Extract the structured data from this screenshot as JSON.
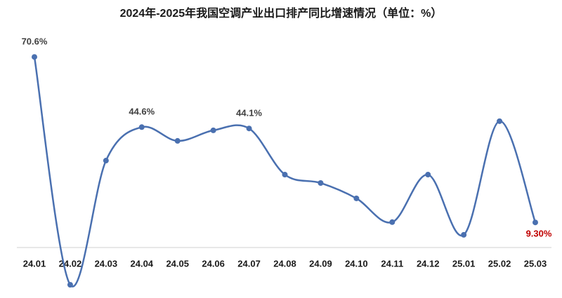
{
  "chart_data": {
    "type": "line",
    "title": "2024年-2025年我国空调产业出口排产同比增速情况（单位：%）",
    "categories": [
      "24.01",
      "24.02",
      "24.03",
      "24.04",
      "24.05",
      "24.06",
      "24.07",
      "24.08",
      "24.09",
      "24.10",
      "24.11",
      "24.12",
      "25.01",
      "25.02",
      "25.03"
    ],
    "values": [
      70.6,
      -13.8,
      32.2,
      44.6,
      39.5,
      43.4,
      44.1,
      27.0,
      23.9,
      18.2,
      9.4,
      27.0,
      4.7,
      46.8,
      9.3
    ],
    "value_labels": [
      "70.6%",
      null,
      null,
      "44.6%",
      null,
      null,
      "44.1%",
      null,
      null,
      null,
      null,
      null,
      null,
      null,
      "9.30%"
    ],
    "value_label_colors": [
      "#404040",
      null,
      null,
      "#404040",
      null,
      null,
      "#404040",
      null,
      null,
      null,
      null,
      null,
      null,
      null,
      "#c00000"
    ],
    "color": "#4a70b0",
    "ylim": [
      -15,
      72
    ],
    "smooth": true
  }
}
